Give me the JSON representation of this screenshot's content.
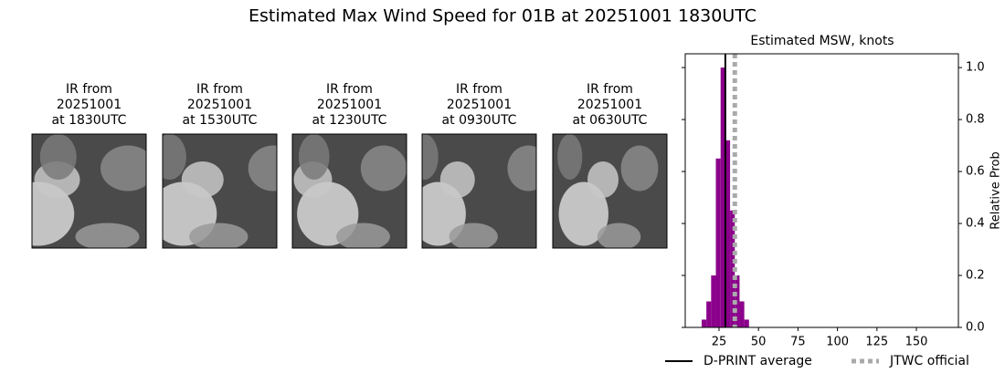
{
  "title": "Estimated Max Wind Speed for 01B at 20251001 1830UTC",
  "panels": [
    {
      "label_lines": [
        "IR from",
        "20251001",
        "at 1830UTC"
      ]
    },
    {
      "label_lines": [
        "IR from",
        "20251001",
        "at 1530UTC"
      ]
    },
    {
      "label_lines": [
        "IR from",
        "20251001",
        "at 1230UTC"
      ]
    },
    {
      "label_lines": [
        "IR from",
        "20251001",
        "at 0930UTC"
      ]
    },
    {
      "label_lines": [
        "IR from",
        "20251001",
        "at 0630UTC"
      ]
    }
  ],
  "chart_data": {
    "type": "histogram",
    "title": "Estimated MSW, knots",
    "y_label": "Relative Prob",
    "bins": [
      14,
      17,
      20,
      23,
      26,
      29,
      32,
      35,
      38,
      41,
      44
    ],
    "values": [
      0.03,
      0.1,
      0.2,
      0.65,
      1.0,
      0.72,
      0.45,
      0.2,
      0.1,
      0.03
    ],
    "color": "#8b008b",
    "xlim": [
      3.6,
      176.6
    ],
    "ylim": [
      0,
      1.053
    ],
    "xticks": [
      25,
      50,
      75,
      100,
      125,
      150
    ],
    "yticks": [
      {
        "value": 0,
        "label": "0.0"
      },
      {
        "value": 0.2,
        "label": "0.2"
      },
      {
        "value": 0.4,
        "label": "0.4"
      },
      {
        "value": 0.6,
        "label": "0.6"
      },
      {
        "value": 0.8,
        "label": "0.8"
      },
      {
        "value": 1.0,
        "label": "1.0"
      }
    ],
    "reference_lines": [
      {
        "name": "D-PRINT average",
        "value": 29,
        "color": "#000000",
        "dashed": false
      },
      {
        "name": "JTWC official",
        "value": 35,
        "color": "#aaaaaa",
        "dashed": true
      }
    ]
  }
}
